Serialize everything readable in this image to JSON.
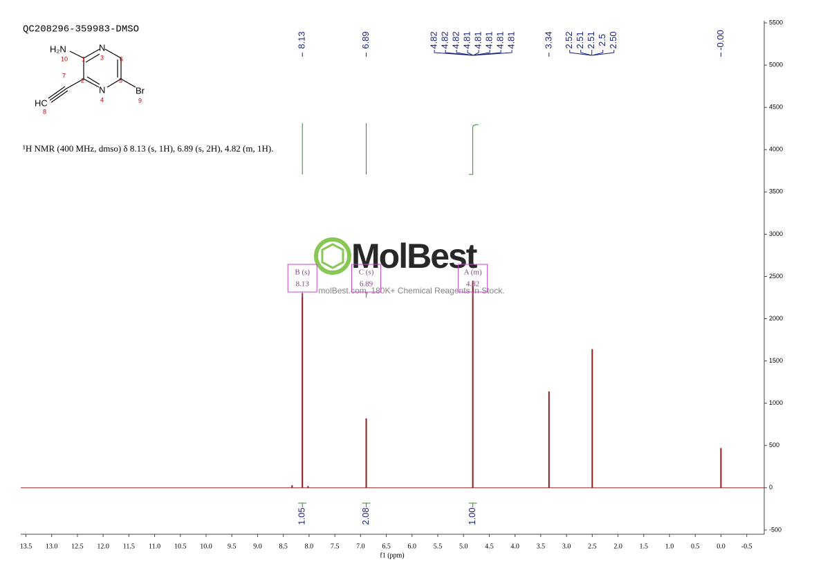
{
  "chart_data": {
    "type": "nmr",
    "title": "QC208296-359983-DMSO",
    "description": "¹H NMR (400 MHz, dmso) δ 8.13 (s, 1H), 6.89 (s, 2H), 4.82 (m, 1H).",
    "xlabel": "f1 (ppm)",
    "watermark": {
      "logo": "MolBest",
      "text": "molBest.com, 180K+ Chemical Reagents In Stock."
    },
    "molecule": {
      "atoms": [
        "H₂N",
        "N",
        "N",
        "Br",
        "HC"
      ],
      "numbers": [
        "10",
        "1",
        "3",
        "6",
        "7",
        "2",
        "5",
        "4",
        "9",
        "8"
      ]
    },
    "color": "#8b1a1a",
    "x": [
      8.33,
      8.13,
      8.02,
      6.89,
      4.82,
      3.34,
      2.5,
      0
    ],
    "values": [
      30,
      2300,
      20,
      820,
      2450,
      1140,
      1640,
      470
    ],
    "peak_labels": [
      8.13,
      6.89,
      4.82,
      4.82,
      4.82,
      4.81,
      4.81,
      4.81,
      4.81,
      4.81,
      3.34,
      2.52,
      2.51,
      2.51,
      2.5,
      {
        "value": 2.5,
        "label": "2.50"
      },
      {
        "value": 0,
        "label": "-0.00"
      }
    ],
    "multiplets": [
      {
        "name": "B (s)",
        "value": 8.13
      },
      {
        "name": "C (s)",
        "value": 6.89
      },
      {
        "name": "A (m)",
        "value": 4.82
      }
    ],
    "integrals": {
      "x": [
        8.13,
        6.89,
        4.82
      ],
      "values": [
        1.05,
        2.08,
        1.0
      ],
      "value_labels": [
        "1.05",
        "2.08",
        "1.00"
      ]
    },
    "xlim": [
      13.6,
      -0.84
    ],
    "xticks": [
      13.5,
      {
        "value": 13,
        "label": "13.0"
      },
      12.5,
      {
        "value": 12,
        "label": "12.0"
      },
      11.5,
      {
        "value": 11,
        "label": "11.0"
      },
      10.5,
      {
        "value": 10,
        "label": "10.0"
      },
      9.5,
      {
        "value": 9,
        "label": "9.0"
      },
      8.5,
      {
        "value": 8,
        "label": "8.0"
      },
      7.5,
      {
        "value": 7,
        "label": "7.0"
      },
      6.5,
      {
        "value": 6,
        "label": "6.0"
      },
      5.5,
      {
        "value": 5,
        "label": "5.0"
      },
      4.5,
      {
        "value": 4,
        "label": "4.0"
      },
      3.5,
      {
        "value": 3,
        "label": "3.0"
      },
      2.5,
      {
        "value": 2,
        "label": "2.0"
      },
      1.5,
      {
        "value": 1,
        "label": "1.0"
      },
      0.5,
      {
        "value": 0,
        "label": "0.0"
      },
      -0.5
    ],
    "ylim": [
      -550,
      5525
    ],
    "yticks": [
      -500,
      0,
      500,
      1000,
      1500,
      2000,
      2500,
      3000,
      3500,
      4000,
      4500,
      5000,
      5500
    ]
  }
}
